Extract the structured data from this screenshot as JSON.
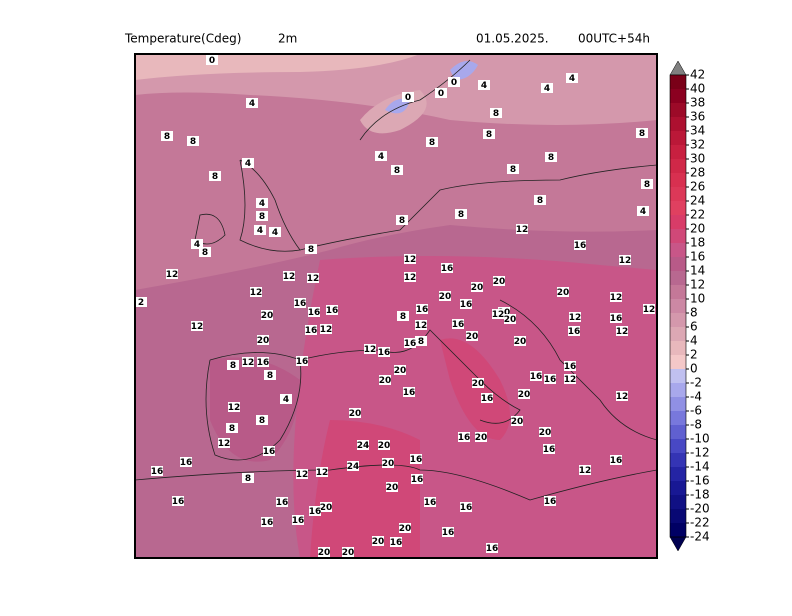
{
  "header": {
    "title": "Temperature(Cdeg)",
    "level": "2m",
    "date": "01.05.2025.",
    "run": "00UTC+54h"
  },
  "colorbar": {
    "levels": [
      42,
      40,
      38,
      36,
      34,
      32,
      30,
      28,
      26,
      24,
      22,
      20,
      18,
      16,
      14,
      12,
      10,
      8,
      6,
      4,
      2,
      0,
      -2,
      -4,
      -6,
      -8,
      -10,
      -12,
      -14,
      -16,
      -18,
      -20,
      -22,
      -24
    ],
    "colors": [
      "#808080",
      "#7a0018",
      "#8b0020",
      "#9c0a28",
      "#ad1030",
      "#bb1838",
      "#c82040",
      "#d02848",
      "#d83050",
      "#dc3858",
      "#e04060",
      "#d83c68",
      "#d04878",
      "#c85688",
      "#b85a88",
      "#b86890",
      "#c47898",
      "#cc88a4",
      "#d498ac",
      "#dca8b4",
      "#e8b8bc",
      "#f4c8c8",
      "#c0c0f0",
      "#a8a8ec",
      "#9090e4",
      "#7878dc",
      "#6060d0",
      "#4848c4",
      "#3434b4",
      "#2424a4",
      "#181894",
      "#101084",
      "#080874",
      "#000064",
      "#000050"
    ]
  },
  "map": {
    "contour_labels": [
      0,
      4,
      8,
      8,
      8,
      4,
      4,
      8,
      4,
      4,
      4,
      8,
      8,
      12,
      12,
      12,
      2,
      12,
      12,
      16,
      20,
      16,
      16,
      12,
      16,
      20,
      16,
      12,
      8,
      16,
      8,
      12,
      8,
      8,
      4,
      16,
      12,
      16,
      16,
      16,
      8,
      12,
      12,
      16,
      16,
      16,
      20,
      16,
      20,
      24,
      20,
      24,
      20,
      16,
      20,
      16,
      16,
      16,
      20,
      20,
      16,
      20,
      20,
      16,
      16,
      20,
      16,
      20,
      16,
      20,
      20,
      20,
      16,
      16,
      12,
      12,
      16,
      16,
      16,
      12,
      16,
      12,
      16,
      20,
      20,
      20,
      16,
      20,
      16,
      12,
      12,
      16,
      12,
      8,
      8,
      4,
      4,
      4,
      8,
      8,
      8,
      8,
      8,
      8,
      4,
      8,
      8,
      8,
      0,
      0,
      0,
      4,
      12,
      20,
      20,
      16,
      12,
      8,
      16,
      8,
      16,
      12,
      20,
      16,
      20,
      16,
      20,
      12,
      16,
      12,
      12,
      12,
      20
    ]
  }
}
